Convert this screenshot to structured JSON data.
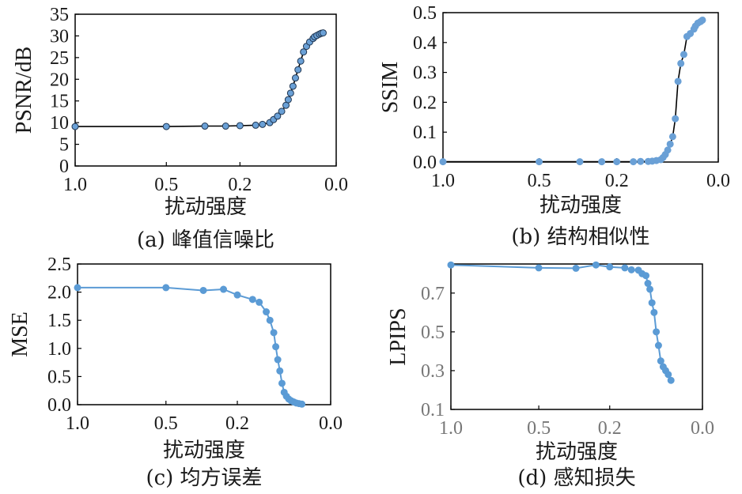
{
  "chart_data": [
    {
      "id": "a",
      "type": "line",
      "title": "",
      "caption": "(a) 峰值信噪比",
      "xlabel": "扰动强度",
      "ylabel": "PSNR/dB",
      "xticks": [
        1.0,
        0.5,
        0.2,
        0.0
      ],
      "xtick_labels": [
        "1.0",
        "0.5",
        "0.2",
        "0.0"
      ],
      "xlim": [
        1.0,
        0.0
      ],
      "ylim": [
        0,
        35
      ],
      "yticks": [
        0,
        5,
        10,
        15,
        20,
        25,
        30,
        35
      ],
      "ytick_labels": [
        "0",
        "5",
        "10",
        "15",
        "20",
        "25",
        "30",
        "35"
      ],
      "grid": false,
      "style": {
        "line": "#000000",
        "marker_fill": "#6aa0d6",
        "marker_edge": "#1f3550",
        "tick_color": "#1a1a1a"
      },
      "series": [
        {
          "x": [
            1.0,
            0.5,
            0.33,
            0.25,
            0.2,
            0.15,
            0.13,
            0.11,
            0.1,
            0.09,
            0.08,
            0.07,
            0.065,
            0.06,
            0.055,
            0.05,
            0.045,
            0.04,
            0.035,
            0.03,
            0.025,
            0.02,
            0.018,
            0.015,
            0.012,
            0.01,
            0.008
          ],
          "y": [
            9.1,
            9.1,
            9.2,
            9.2,
            9.3,
            9.4,
            9.6,
            10.0,
            10.7,
            11.5,
            12.6,
            14.0,
            15.3,
            16.8,
            18.4,
            20.3,
            22.2,
            24.2,
            26.3,
            27.6,
            28.6,
            29.4,
            29.8,
            30.1,
            30.4,
            30.6,
            30.7
          ]
        }
      ]
    },
    {
      "id": "b",
      "type": "line",
      "title": "",
      "caption": "(b) 结构相似性",
      "xlabel": "扰动强度",
      "ylabel": "SSIM",
      "xticks": [
        1.0,
        0.5,
        0.2,
        0.0
      ],
      "xtick_labels": [
        "1.0",
        "0.5",
        "0.2",
        "0.0"
      ],
      "xlim": [
        1.0,
        0.0
      ],
      "ylim": [
        0,
        0.5
      ],
      "yticks": [
        0.0,
        0.1,
        0.2,
        0.3,
        0.4,
        0.5
      ],
      "ytick_labels": [
        "0.0",
        "0.1",
        "0.2",
        "0.3",
        "0.4",
        "0.5"
      ],
      "grid": false,
      "style": {
        "line": "#000000",
        "marker_fill": "#6aa0d6",
        "marker_edge": "#6aa0d6",
        "tick_color": "#1a1a1a"
      },
      "series": [
        {
          "x": [
            1.0,
            0.5,
            0.33,
            0.25,
            0.2,
            0.15,
            0.13,
            0.11,
            0.1,
            0.09,
            0.08,
            0.075,
            0.07,
            0.065,
            0.06,
            0.055,
            0.05,
            0.045,
            0.04,
            0.035,
            0.03,
            0.025,
            0.02,
            0.018,
            0.015,
            0.012,
            0.01
          ],
          "y": [
            0.001,
            0.001,
            0.001,
            0.001,
            0.001,
            0.001,
            0.002,
            0.002,
            0.003,
            0.005,
            0.008,
            0.015,
            0.025,
            0.04,
            0.06,
            0.085,
            0.145,
            0.27,
            0.33,
            0.36,
            0.42,
            0.43,
            0.445,
            0.455,
            0.465,
            0.47,
            0.475
          ]
        }
      ]
    },
    {
      "id": "c",
      "type": "line",
      "title": "",
      "caption": "(c) 均方误差",
      "xlabel": "扰动强度",
      "ylabel": "MSE",
      "xticks": [
        1.0,
        0.5,
        0.2,
        0.0
      ],
      "xtick_labels": [
        "1.0",
        "0.5",
        "0.2",
        "0.0"
      ],
      "xlim": [
        1.0,
        0.0
      ],
      "ylim": [
        0,
        2.5
      ],
      "yticks": [
        0.0,
        0.5,
        1.0,
        1.5,
        2.0,
        2.5
      ],
      "ytick_labels": [
        "0.0",
        "0.5",
        "1.0",
        "1.5",
        "2.0",
        "2.5"
      ],
      "grid": false,
      "style": {
        "line": "#5b9bd5",
        "marker_fill": "#5b9bd5",
        "marker_edge": "#5b9bd5",
        "tick_color": "#1a1a1a"
      },
      "series": [
        {
          "x": [
            1.0,
            0.5,
            0.33,
            0.25,
            0.2,
            0.15,
            0.13,
            0.11,
            0.1,
            0.09,
            0.085,
            0.08,
            0.075,
            0.07,
            0.065,
            0.06,
            0.055,
            0.05,
            0.045,
            0.04,
            0.035,
            0.03
          ],
          "y": [
            2.08,
            2.08,
            2.03,
            2.05,
            1.95,
            1.87,
            1.82,
            1.65,
            1.5,
            1.28,
            1.03,
            0.8,
            0.6,
            0.38,
            0.22,
            0.15,
            0.1,
            0.07,
            0.05,
            0.03,
            0.02,
            0.01
          ]
        }
      ]
    },
    {
      "id": "d",
      "type": "line",
      "title": "",
      "caption": "(d) 感知损失",
      "xlabel": "扰动强度",
      "ylabel": "LPIPS",
      "xticks": [
        1.0,
        0.5,
        0.2,
        0.0
      ],
      "xtick_labels": [
        "1.0",
        "0.5",
        "0.2",
        "0.0"
      ],
      "xlim": [
        1.0,
        0.0
      ],
      "ylim": [
        0.1,
        0.85
      ],
      "yticks": [
        0.1,
        0.3,
        0.5,
        0.7
      ],
      "ytick_labels": [
        "0.1",
        "0.3",
        "0.5",
        "0.7"
      ],
      "grid": false,
      "style": {
        "line": "#5b9bd5",
        "marker_fill": "#5b9bd5",
        "marker_edge": "#5b9bd5",
        "tick_color": "#777777"
      },
      "series": [
        {
          "x": [
            1.0,
            0.5,
            0.33,
            0.25,
            0.2,
            0.15,
            0.13,
            0.11,
            0.1,
            0.09,
            0.085,
            0.08,
            0.075,
            0.07,
            0.065,
            0.06,
            0.055,
            0.05,
            0.045,
            0.04,
            0.035
          ],
          "y": [
            0.845,
            0.83,
            0.828,
            0.845,
            0.835,
            0.83,
            0.82,
            0.818,
            0.8,
            0.79,
            0.75,
            0.72,
            0.65,
            0.6,
            0.5,
            0.43,
            0.35,
            0.32,
            0.3,
            0.28,
            0.25
          ]
        }
      ]
    }
  ]
}
